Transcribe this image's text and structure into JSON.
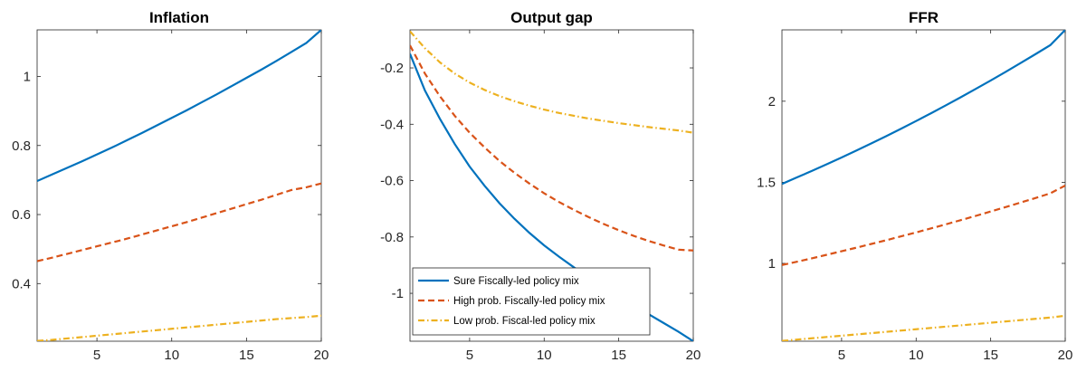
{
  "chart_data": [
    {
      "type": "line",
      "title": "Inflation",
      "xlabel": "",
      "ylabel": "",
      "xlim": [
        1,
        20
      ],
      "ylim": [
        0.233,
        1.135
      ],
      "xticks": [
        5,
        10,
        15,
        20
      ],
      "yticks": [
        0.4,
        0.6,
        0.8,
        1
      ],
      "ytick_labels": [
        "0.4",
        "0.6",
        "0.8",
        "1"
      ],
      "legend": null,
      "series": [
        {
          "style": "solid",
          "color": "#0072BD",
          "x": [
            1,
            2,
            3,
            4,
            5,
            6,
            7,
            8,
            9,
            10,
            11,
            12,
            13,
            14,
            15,
            16,
            17,
            18,
            19,
            20
          ],
          "y": [
            0.697,
            0.716,
            0.735,
            0.754,
            0.774,
            0.794,
            0.815,
            0.836,
            0.858,
            0.88,
            0.902,
            0.925,
            0.948,
            0.972,
            0.996,
            1.02,
            1.045,
            1.071,
            1.097,
            1.135
          ]
        },
        {
          "style": "dashed",
          "color": "#D95319",
          "x": [
            1,
            2,
            3,
            4,
            5,
            6,
            7,
            8,
            9,
            10,
            11,
            12,
            13,
            14,
            15,
            16,
            17,
            18,
            19,
            20
          ],
          "y": [
            0.465,
            0.475,
            0.486,
            0.497,
            0.508,
            0.519,
            0.53,
            0.542,
            0.554,
            0.566,
            0.578,
            0.591,
            0.604,
            0.617,
            0.63,
            0.643,
            0.657,
            0.671,
            0.679,
            0.69
          ]
        },
        {
          "style": "dashdot",
          "color": "#EDB120",
          "x": [
            1,
            2,
            3,
            4,
            5,
            6,
            7,
            8,
            9,
            10,
            11,
            12,
            13,
            14,
            15,
            16,
            17,
            18,
            19,
            20
          ],
          "y": [
            0.234,
            0.237,
            0.241,
            0.245,
            0.249,
            0.253,
            0.257,
            0.261,
            0.265,
            0.269,
            0.273,
            0.277,
            0.281,
            0.285,
            0.289,
            0.293,
            0.297,
            0.3,
            0.303,
            0.307
          ]
        }
      ]
    },
    {
      "type": "line",
      "title": "Output gap",
      "xlabel": "",
      "ylabel": "",
      "xlim": [
        1,
        20
      ],
      "ylim": [
        -1.17,
        -0.065
      ],
      "xticks": [
        5,
        10,
        15,
        20
      ],
      "yticks": [
        -1,
        -0.8,
        -0.6,
        -0.4,
        -0.2
      ],
      "ytick_labels": [
        "-1",
        "-0.8",
        "-0.6",
        "-0.4",
        "-0.2"
      ],
      "legend": {
        "location": "bottom-left",
        "entries": [
          "Sure Fiscally-led policy mix",
          "High prob. Fiscally-led policy mix",
          "Low prob. Fiscal-led policy mix"
        ]
      },
      "series": [
        {
          "name": "Sure Fiscally-led policy mix",
          "style": "solid",
          "color": "#0072BD",
          "x": [
            1,
            2,
            3,
            4,
            5,
            6,
            7,
            8,
            9,
            10,
            11,
            12,
            13,
            14,
            15,
            16,
            17,
            18,
            19,
            20
          ],
          "y": [
            -0.15,
            -0.28,
            -0.38,
            -0.47,
            -0.55,
            -0.618,
            -0.68,
            -0.735,
            -0.785,
            -0.83,
            -0.87,
            -0.908,
            -0.944,
            -0.978,
            -1.01,
            -1.042,
            -1.074,
            -1.105,
            -1.136,
            -1.17
          ]
        },
        {
          "name": "High prob. Fiscally-led policy mix",
          "style": "dashed",
          "color": "#D95319",
          "x": [
            1,
            2,
            3,
            4,
            5,
            6,
            7,
            8,
            9,
            10,
            11,
            12,
            13,
            14,
            15,
            16,
            17,
            18,
            19,
            20
          ],
          "y": [
            -0.12,
            -0.22,
            -0.3,
            -0.37,
            -0.43,
            -0.482,
            -0.53,
            -0.572,
            -0.61,
            -0.645,
            -0.676,
            -0.704,
            -0.73,
            -0.754,
            -0.776,
            -0.796,
            -0.814,
            -0.83,
            -0.845,
            -0.848
          ]
        },
        {
          "name": "Low prob. Fiscal-led policy mix",
          "style": "dashdot",
          "color": "#EDB120",
          "x": [
            1,
            2,
            3,
            4,
            5,
            6,
            7,
            8,
            9,
            10,
            11,
            12,
            13,
            14,
            15,
            16,
            17,
            18,
            19,
            20
          ],
          "y": [
            -0.07,
            -0.13,
            -0.18,
            -0.22,
            -0.252,
            -0.278,
            -0.3,
            -0.318,
            -0.334,
            -0.348,
            -0.36,
            -0.37,
            -0.38,
            -0.388,
            -0.396,
            -0.403,
            -0.41,
            -0.416,
            -0.422,
            -0.43
          ]
        }
      ]
    },
    {
      "type": "line",
      "title": "FFR",
      "xlabel": "",
      "ylabel": "",
      "xlim": [
        1,
        20
      ],
      "ylim": [
        0.52,
        2.44
      ],
      "xticks": [
        5,
        10,
        15,
        20
      ],
      "yticks": [
        1,
        1.5,
        2
      ],
      "ytick_labels": [
        "1",
        "1.5",
        "2"
      ],
      "legend": null,
      "series": [
        {
          "style": "solid",
          "color": "#0072BD",
          "x": [
            1,
            2,
            3,
            4,
            5,
            6,
            7,
            8,
            9,
            10,
            11,
            12,
            13,
            14,
            15,
            16,
            17,
            18,
            19,
            20
          ],
          "y": [
            1.49,
            1.53,
            1.57,
            1.611,
            1.653,
            1.696,
            1.74,
            1.785,
            1.831,
            1.878,
            1.926,
            1.975,
            2.025,
            2.076,
            2.128,
            2.181,
            2.235,
            2.29,
            2.346,
            2.44
          ]
        },
        {
          "style": "dashed",
          "color": "#D95319",
          "x": [
            1,
            2,
            3,
            4,
            5,
            6,
            7,
            8,
            9,
            10,
            11,
            12,
            13,
            14,
            15,
            16,
            17,
            18,
            19,
            20
          ],
          "y": [
            0.99,
            1.01,
            1.031,
            1.053,
            1.075,
            1.097,
            1.12,
            1.143,
            1.167,
            1.191,
            1.216,
            1.241,
            1.267,
            1.293,
            1.32,
            1.347,
            1.375,
            1.403,
            1.432,
            1.48
          ]
        },
        {
          "style": "dashdot",
          "color": "#EDB120",
          "x": [
            1,
            2,
            3,
            4,
            5,
            6,
            7,
            8,
            9,
            10,
            11,
            12,
            13,
            14,
            15,
            16,
            17,
            18,
            19,
            20
          ],
          "y": [
            0.522,
            0.53,
            0.538,
            0.546,
            0.554,
            0.562,
            0.57,
            0.578,
            0.586,
            0.594,
            0.602,
            0.61,
            0.618,
            0.626,
            0.634,
            0.642,
            0.65,
            0.658,
            0.666,
            0.677
          ]
        }
      ]
    }
  ]
}
